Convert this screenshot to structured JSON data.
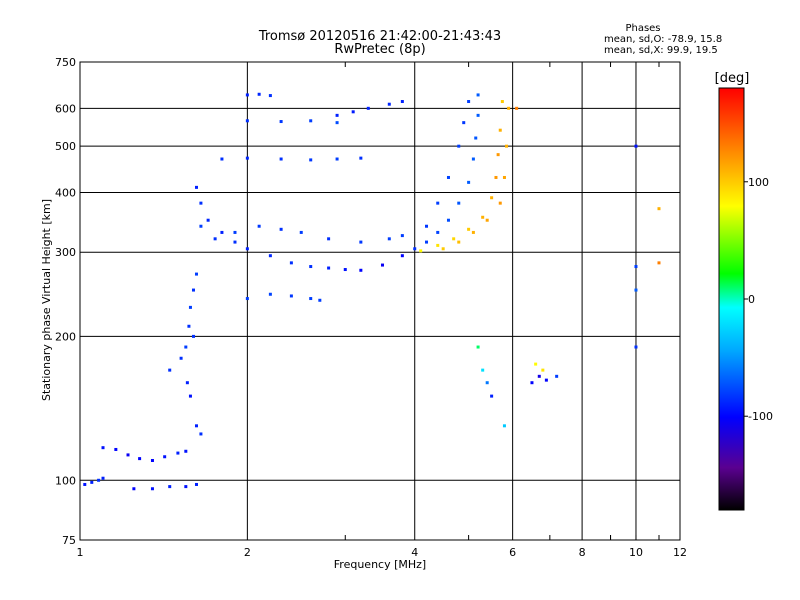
{
  "chart_data": {
    "type": "scatter",
    "title": "Tromsø 20120516 21:42:00-21:43:43",
    "subtitle": "RwPretec (8p)",
    "xlabel": "Frequency [MHz]",
    "ylabel": "Stationary phase Virtual Height [km]",
    "x_scale": "log",
    "y_scale": "log",
    "xlim": [
      1,
      12
    ],
    "ylim": [
      75,
      750
    ],
    "x_ticks": [
      1,
      2,
      4,
      6,
      8,
      10,
      12
    ],
    "y_ticks": [
      75,
      100,
      200,
      300,
      400,
      500,
      600,
      750
    ],
    "grid": true,
    "colorbar": {
      "label": "[deg]",
      "range": [
        -180,
        180
      ],
      "ticks": [
        100,
        0,
        -100
      ],
      "colors": [
        "#000000",
        "#7000a0",
        "#0000ff",
        "#00a0ff",
        "#00ffff",
        "#00ff00",
        "#ffff00",
        "#ff8000",
        "#ff0000"
      ]
    },
    "phases_box": {
      "title": "Phases",
      "line1": "mean, sd,O: -78.9, 15.8",
      "line2": "mean, sd,X:  99.9, 19.5"
    },
    "series": [
      {
        "points": [
          [
            1.02,
            98,
            -95
          ],
          [
            1.05,
            99,
            -90
          ],
          [
            1.08,
            100,
            -85
          ],
          [
            1.1,
            101,
            -90
          ],
          [
            1.25,
            96,
            -100
          ],
          [
            1.35,
            96,
            -95
          ],
          [
            1.45,
            97,
            -90
          ],
          [
            1.55,
            97,
            -95
          ],
          [
            1.62,
            98,
            -90
          ],
          [
            1.1,
            117,
            -95
          ],
          [
            1.16,
            116,
            -100
          ],
          [
            1.22,
            113,
            -105
          ],
          [
            1.28,
            111,
            -100
          ],
          [
            1.35,
            110,
            -100
          ],
          [
            1.42,
            112,
            -95
          ],
          [
            1.5,
            114,
            -90
          ],
          [
            1.55,
            115,
            -95
          ],
          [
            1.45,
            170,
            -85
          ],
          [
            1.52,
            180,
            -85
          ],
          [
            1.55,
            190,
            -80
          ],
          [
            1.57,
            210,
            -85
          ],
          [
            1.58,
            230,
            -80
          ],
          [
            1.6,
            250,
            -85
          ],
          [
            1.62,
            270,
            -80
          ],
          [
            1.6,
            200,
            -85
          ],
          [
            1.56,
            160,
            -90
          ],
          [
            1.58,
            150,
            -95
          ],
          [
            1.62,
            130,
            -90
          ],
          [
            1.65,
            125,
            -85
          ],
          [
            1.62,
            410,
            -90
          ],
          [
            1.65,
            380,
            -85
          ],
          [
            1.7,
            350,
            -88
          ],
          [
            1.8,
            330,
            -90
          ],
          [
            1.9,
            315,
            -85
          ],
          [
            2.0,
            305,
            -90
          ],
          [
            2.2,
            295,
            -88
          ],
          [
            2.4,
            285,
            -85
          ],
          [
            2.6,
            280,
            -85
          ],
          [
            2.8,
            278,
            -90
          ],
          [
            3.0,
            276,
            -95
          ],
          [
            3.2,
            275,
            -100
          ],
          [
            3.5,
            282,
            -105
          ],
          [
            3.8,
            295,
            -100
          ],
          [
            1.65,
            340,
            -80
          ],
          [
            1.75,
            320,
            -85
          ],
          [
            1.9,
            330,
            -80
          ],
          [
            2.1,
            340,
            -82
          ],
          [
            2.3,
            335,
            -85
          ],
          [
            2.5,
            330,
            -80
          ],
          [
            2.8,
            320,
            -85
          ],
          [
            3.2,
            315,
            -82
          ],
          [
            3.6,
            320,
            -80
          ],
          [
            3.8,
            325,
            -80
          ],
          [
            2.0,
            240,
            -80
          ],
          [
            2.2,
            245,
            -78
          ],
          [
            2.4,
            243,
            -82
          ],
          [
            2.6,
            240,
            -80
          ],
          [
            2.7,
            238,
            -80
          ],
          [
            1.8,
            470,
            -85
          ],
          [
            2.0,
            472,
            -88
          ],
          [
            2.3,
            470,
            -85
          ],
          [
            2.6,
            468,
            -82
          ],
          [
            2.9,
            470,
            -80
          ],
          [
            3.2,
            472,
            -85
          ],
          [
            2.0,
            640,
            -90
          ],
          [
            2.1,
            642,
            -88
          ],
          [
            2.2,
            638,
            -85
          ],
          [
            2.0,
            565,
            -85
          ],
          [
            2.3,
            563,
            -82
          ],
          [
            2.6,
            565,
            -80
          ],
          [
            2.9,
            560,
            -75
          ],
          [
            2.9,
            580,
            -90
          ],
          [
            3.1,
            590,
            -92
          ],
          [
            3.3,
            600,
            -90
          ],
          [
            3.6,
            612,
            -88
          ],
          [
            3.8,
            620,
            -90
          ],
          [
            4.0,
            305,
            -85
          ],
          [
            4.2,
            315,
            -80
          ],
          [
            4.4,
            330,
            -78
          ],
          [
            4.6,
            350,
            -75
          ],
          [
            4.8,
            380,
            -72
          ],
          [
            5.0,
            420,
            -70
          ],
          [
            5.1,
            470,
            -70
          ],
          [
            5.15,
            520,
            -72
          ],
          [
            5.2,
            580,
            -70
          ],
          [
            5.2,
            640,
            -70
          ],
          [
            4.2,
            340,
            -82
          ],
          [
            4.4,
            380,
            -80
          ],
          [
            4.6,
            430,
            -78
          ],
          [
            4.8,
            500,
            -80
          ],
          [
            4.9,
            560,
            -82
          ],
          [
            5.0,
            620,
            -80
          ],
          [
            4.1,
            302,
            80
          ],
          [
            4.4,
            310,
            90
          ],
          [
            4.7,
            320,
            95
          ],
          [
            5.0,
            335,
            100
          ],
          [
            5.3,
            355,
            110
          ],
          [
            5.5,
            390,
            110
          ],
          [
            5.6,
            430,
            120
          ],
          [
            5.65,
            480,
            120
          ],
          [
            5.7,
            540,
            110
          ],
          [
            5.75,
            620,
            100
          ],
          [
            4.5,
            305,
            100
          ],
          [
            4.8,
            315,
            105
          ],
          [
            5.1,
            330,
            110
          ],
          [
            5.4,
            350,
            115
          ],
          [
            5.7,
            380,
            120
          ],
          [
            5.8,
            430,
            115
          ],
          [
            5.85,
            500,
            110
          ],
          [
            5.9,
            600,
            110
          ],
          [
            6.1,
            600,
            130
          ],
          [
            5.2,
            190,
            10
          ],
          [
            5.3,
            170,
            -20
          ],
          [
            5.4,
            160,
            -60
          ],
          [
            5.5,
            150,
            -90
          ],
          [
            5.8,
            130,
            -30
          ],
          [
            6.5,
            160,
            -100
          ],
          [
            6.7,
            165,
            -110
          ],
          [
            6.9,
            162,
            -100
          ],
          [
            6.6,
            175,
            80
          ],
          [
            6.8,
            170,
            90
          ],
          [
            7.2,
            165,
            -80
          ],
          [
            10.0,
            190,
            -85
          ],
          [
            10.0,
            250,
            -70
          ],
          [
            10.0,
            280,
            -80
          ],
          [
            11.0,
            285,
            130
          ],
          [
            11.0,
            370,
            110
          ],
          [
            10.0,
            500,
            -95
          ]
        ]
      }
    ]
  }
}
